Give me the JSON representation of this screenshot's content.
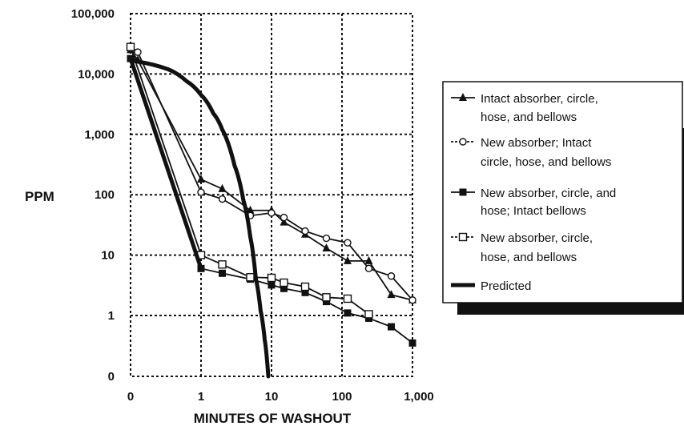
{
  "chart_data": {
    "type": "line",
    "xlabel": "MINUTES OF WASHOUT",
    "ylabel": "PPM",
    "x_scale": "log-with-zero",
    "y_scale": "log-with-zero",
    "x_ticks": [
      "0",
      "1",
      "10",
      "100",
      "1,000"
    ],
    "y_ticks": [
      "0",
      "1",
      "10",
      "100",
      "1,000",
      "10,000",
      "100,000"
    ],
    "xlim": [
      0,
      1000
    ],
    "ylim": [
      0,
      100000
    ],
    "grid": true,
    "legend_position": "right",
    "series": [
      {
        "name": "Intact absorber, circle, hose, and bellows",
        "marker": "filled-triangle",
        "color": "#111111",
        "points": [
          [
            0,
            25000
          ],
          [
            0.1,
            17000
          ],
          [
            1,
            180
          ],
          [
            2,
            125
          ],
          [
            5,
            55
          ],
          [
            10,
            55
          ],
          [
            15,
            35
          ],
          [
            30,
            22
          ],
          [
            60,
            13
          ],
          [
            120,
            8
          ],
          [
            240,
            8
          ],
          [
            500,
            2.2
          ],
          [
            1000,
            1.8
          ]
        ]
      },
      {
        "name": "New absorber; Intact circle, hose, and bellows",
        "marker": "open-circle",
        "color": "#111111",
        "points": [
          [
            0,
            28000
          ],
          [
            0.1,
            23000
          ],
          [
            1,
            110
          ],
          [
            2,
            85
          ],
          [
            5,
            45
          ],
          [
            10,
            50
          ],
          [
            15,
            42
          ],
          [
            30,
            25
          ],
          [
            60,
            19
          ],
          [
            120,
            16
          ],
          [
            240,
            6
          ],
          [
            500,
            4.5
          ],
          [
            1000,
            1.8
          ]
        ]
      },
      {
        "name": "New absorber, circle, and hose; Intact bellows",
        "marker": "filled-square",
        "color": "#111111",
        "points": [
          [
            0,
            18000
          ],
          [
            1,
            6
          ],
          [
            2,
            5
          ],
          [
            5,
            4
          ],
          [
            10,
            3.2
          ],
          [
            15,
            2.8
          ],
          [
            30,
            2.4
          ],
          [
            60,
            1.7
          ],
          [
            120,
            1.1
          ],
          [
            240,
            0.9
          ],
          [
            500,
            0.65
          ],
          [
            1000,
            0.35
          ]
        ]
      },
      {
        "name": "New absorber, circle, hose, and bellows",
        "marker": "open-square",
        "color": "#111111",
        "points": [
          [
            0,
            28000
          ],
          [
            1,
            10
          ],
          [
            2,
            7
          ],
          [
            5,
            4.3
          ],
          [
            10,
            4.2
          ],
          [
            15,
            3.5
          ],
          [
            30,
            3
          ],
          [
            60,
            2
          ],
          [
            120,
            1.9
          ],
          [
            240,
            1.05
          ]
        ]
      },
      {
        "name": "Predicted",
        "marker": "none",
        "color": "#111111",
        "points": [
          [
            0,
            18000
          ],
          [
            0.1,
            16000
          ],
          [
            0.3,
            12000
          ],
          [
            0.6,
            7500
          ],
          [
            1,
            4500
          ],
          [
            1.5,
            2200
          ],
          [
            2,
            1200
          ],
          [
            3,
            300
          ],
          [
            4,
            80
          ],
          [
            5,
            20
          ],
          [
            6,
            4
          ],
          [
            7,
            1.2
          ],
          [
            8,
            0.4
          ],
          [
            9,
            0
          ]
        ]
      }
    ]
  },
  "colors": {
    "ink": "#111111",
    "background": "#ffffff",
    "legend_shadow": "#111111"
  }
}
